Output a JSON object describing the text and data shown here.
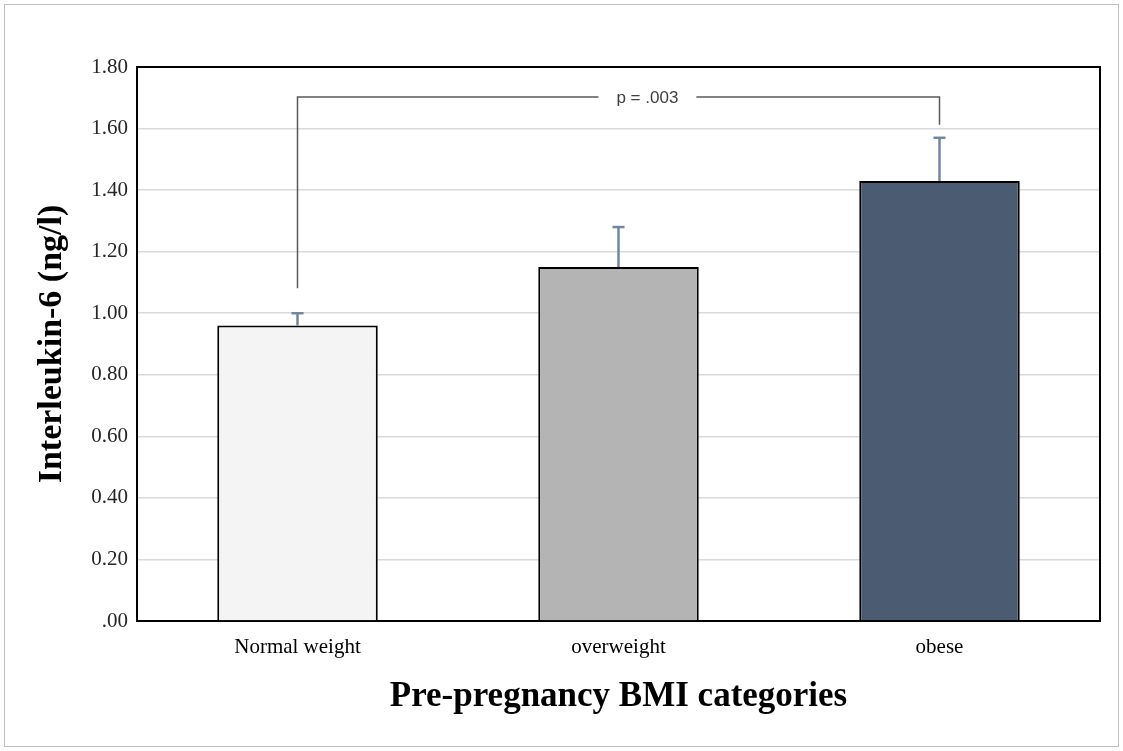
{
  "chart_data": {
    "type": "bar",
    "categories": [
      "Normal weight",
      "overweight",
      "obese"
    ],
    "values": [
      0.96,
      1.15,
      1.43
    ],
    "colors": [
      "#f4f4f4",
      "#b4b4b4",
      "#4b5b71"
    ],
    "errors": [
      [
        0.96,
        1.0
      ],
      [
        1.15,
        1.28
      ],
      [
        1.43,
        1.57
      ]
    ],
    "xlabel": "Pre-pregnancy BMI categories",
    "ylabel": "Interleukin-6 (ng/l)",
    "ylim": [
      0,
      1.8
    ],
    "yticks": [
      {
        "value": 0,
        "label": ".00"
      },
      {
        "value": 0.2,
        "label": "0.20"
      },
      {
        "value": 0.4,
        "label": "0.40"
      },
      {
        "value": 0.6,
        "label": "0.60"
      },
      {
        "value": 0.8,
        "label": "0.80"
      },
      {
        "value": 1,
        "label": "1.00"
      },
      {
        "value": 1.2,
        "label": "1.20"
      },
      {
        "value": 1.4,
        "label": "1.40"
      },
      {
        "value": 1.6,
        "label": "1.60"
      },
      {
        "value": 1.8,
        "label": "1.80"
      }
    ],
    "grid": "y",
    "annotations": [
      "p = .003"
    ]
  }
}
